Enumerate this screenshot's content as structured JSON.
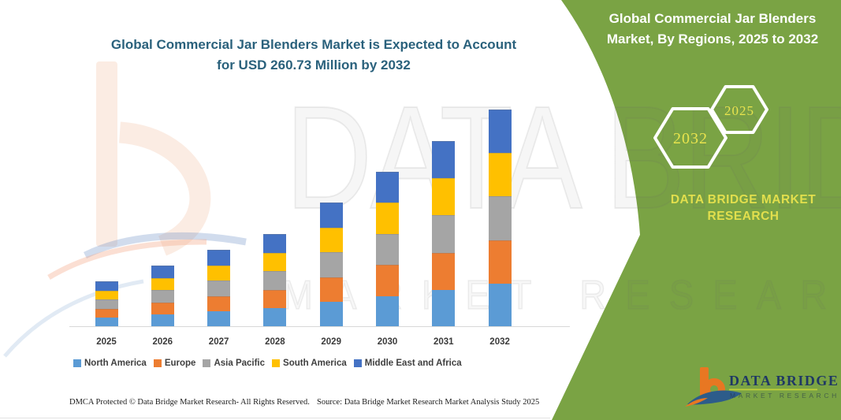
{
  "chart": {
    "title_lines": [
      "Global Commercial Jar Blenders Market is Expected to Account",
      "for USD 260.73 Million by 2032"
    ]
  },
  "chart_data": {
    "type": "bar",
    "stacked": true,
    "title": "Global Commercial Jar Blenders Market is Expected to Account for USD 260.73 Million by 2032",
    "unit": "USD Million",
    "categories": [
      "2025",
      "2026",
      "2027",
      "2028",
      "2029",
      "2030",
      "2031",
      "2032"
    ],
    "series": [
      {
        "name": "North America",
        "color": "#5B9BD5",
        "values": [
          10.96,
          14.74,
          18.52,
          22.29,
          29.85,
          37.22,
          44.59,
          52.15
        ]
      },
      {
        "name": "Europe",
        "color": "#ED7D31",
        "values": [
          10.96,
          14.74,
          18.52,
          22.29,
          29.85,
          37.22,
          44.59,
          52.15
        ]
      },
      {
        "name": "Asia Pacific",
        "color": "#A5A5A5",
        "values": [
          10.96,
          14.74,
          18.52,
          22.29,
          29.85,
          37.22,
          44.59,
          52.15
        ]
      },
      {
        "name": "South America",
        "color": "#FFC000",
        "values": [
          10.96,
          14.74,
          18.52,
          22.29,
          29.85,
          37.22,
          44.59,
          52.15
        ]
      },
      {
        "name": "Middle East and Africa",
        "color": "#4472C4",
        "values": [
          10.96,
          14.74,
          18.52,
          22.29,
          29.85,
          37.22,
          44.59,
          52.15
        ]
      }
    ],
    "totals": [
      54.79,
      73.68,
      92.58,
      111.47,
      149.26,
      186.1,
      222.94,
      260.73
    ],
    "ylim": [
      0,
      280
    ],
    "grid": false,
    "y_axis_shown": false,
    "legend_position": "bottom"
  },
  "panel": {
    "title_lines": [
      "Global Commercial Jar Blenders",
      "Market, By Regions, 2025 to 2032"
    ],
    "hexagons": [
      {
        "label": "2032"
      },
      {
        "label": "2025"
      }
    ],
    "brand_lines": [
      "DATA BRIDGE MARKET",
      "RESEARCH"
    ],
    "colors": {
      "panel_green": "#7AA344",
      "accent_yellow": "#E2DF4D",
      "title_teal": "#2A617C"
    }
  },
  "logo": {
    "brand": "DATA BRIDGE",
    "sub": "MARKET RESEARCH"
  },
  "watermark": {
    "big": "DATA BRIDGE",
    "spaced": "MARKET RESEARCH"
  },
  "footer": {
    "left": "DMCA Protected © Data Bridge Market Research-  All Rights Reserved.",
    "right": "Source: Data Bridge Market Research  Market Analysis Study 2025"
  }
}
